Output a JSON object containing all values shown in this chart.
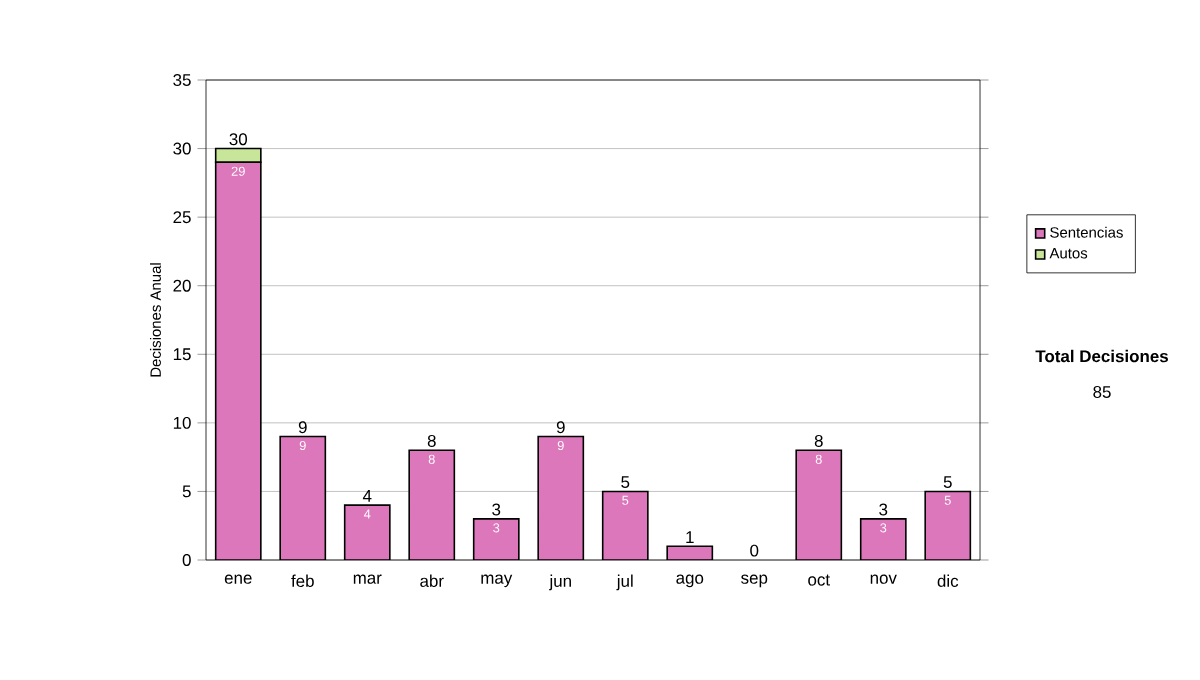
{
  "chart_data": {
    "type": "bar",
    "stacked": true,
    "ylabel": "Decisiones Anual",
    "categories": [
      "ene",
      "feb",
      "mar",
      "abr",
      "may",
      "jun",
      "jul",
      "ago",
      "sep",
      "oct",
      "nov",
      "dic"
    ],
    "series": [
      {
        "name": "Sentencias",
        "color": "#dd77bb",
        "values": [
          29,
          9,
          4,
          8,
          3,
          9,
          5,
          1,
          0,
          8,
          3,
          5
        ],
        "value_labels": [
          "29",
          "9",
          "4",
          "8",
          "3",
          "9",
          "5",
          null,
          null,
          "8",
          "3",
          "5"
        ]
      },
      {
        "name": "Autos",
        "color": "#c8e69a",
        "values": [
          1,
          0,
          0,
          0,
          0,
          0,
          0,
          0,
          0,
          0,
          0,
          0
        ]
      }
    ],
    "totals": [
      "30",
      "9",
      "4",
      "8",
      "3",
      "9",
      "5",
      "1",
      "0",
      "8",
      "3",
      "5"
    ],
    "ylim": [
      0,
      35
    ],
    "yticks": [
      0,
      5,
      10,
      15,
      20,
      25,
      30,
      35
    ],
    "grid": "y",
    "legend": "right",
    "annotations": [
      "Total Decisiones",
      "85"
    ]
  }
}
